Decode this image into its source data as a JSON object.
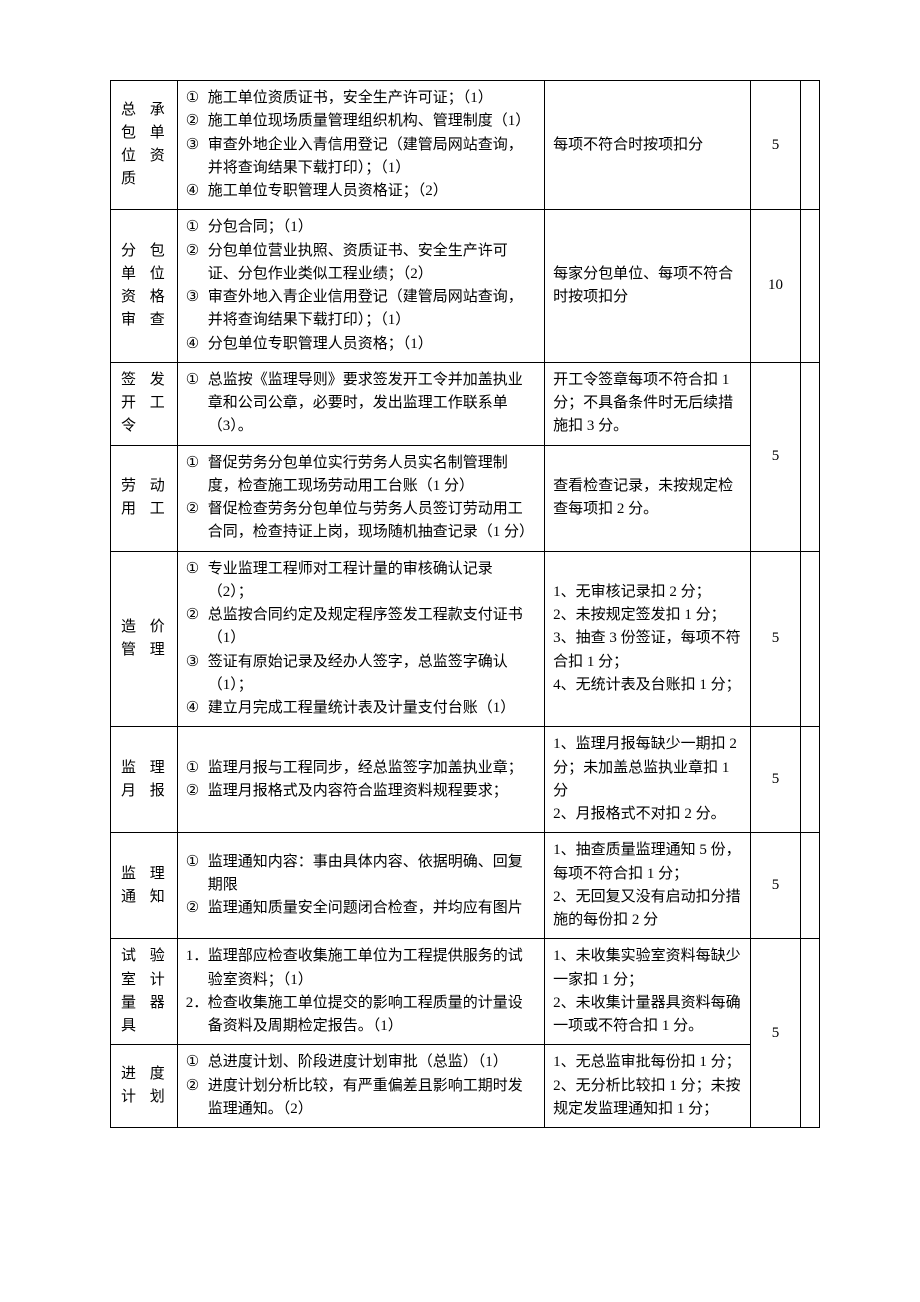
{
  "rows": [
    {
      "label": "总承包单位资质",
      "items": [
        {
          "marker": "①",
          "text": "施工单位资质证书，安全生产许可证；（1）"
        },
        {
          "marker": "②",
          "text": "施工单位现场质量管理组织机构、管理制度（1）"
        },
        {
          "marker": "③",
          "text": "审查外地企业入青信用登记（建管局网站查询，并将查询结果下载打印）；（1）"
        },
        {
          "marker": "④",
          "text": "施工单位专职管理人员资格证；（2）"
        }
      ],
      "criteria": "每项不符合时按项扣分",
      "score": "5"
    },
    {
      "label": "分包单位资格审查",
      "items": [
        {
          "marker": "①",
          "text": "分包合同；（1）"
        },
        {
          "marker": "②",
          "text": "分包单位营业执照、资质证书、安全生产许可证、分包作业类似工程业绩；（2）"
        },
        {
          "marker": "③",
          "text": "审查外地入青企业信用登记（建管局网站查询，并将查询结果下载打印）；（1）"
        },
        {
          "marker": "④",
          "text": "分包单位专职管理人员资格；（1）"
        }
      ],
      "criteria": "每家分包单位、每项不符合时按项扣分",
      "score": "10"
    },
    {
      "label": "签发开工令",
      "items": [
        {
          "marker": "①",
          "text": "总监按《监理导则》要求签发开工令并加盖执业章和公司公章，必要时，发出监理工作联系单（3）。"
        }
      ],
      "criteria": "开工令签章每项不符合扣 1 分；不具备条件时无后续措施扣 3 分。",
      "score": null
    },
    {
      "label": "劳动用工",
      "items": [
        {
          "marker": "①",
          "text": "督促劳务分包单位实行劳务人员实名制管理制度，检查施工现场劳动用工台账（1 分）"
        },
        {
          "marker": "②",
          "text": "督促检查劳务分包单位与劳务人员签订劳动用工合同，检查持证上岗，现场随机抽查记录（1 分）"
        }
      ],
      "criteria": "查看检查记录，未按规定检查每项扣 2 分。",
      "score": "5"
    },
    {
      "label": "造价管理",
      "items": [
        {
          "marker": "①",
          "text": "专业监理工程师对工程计量的审核确认记录（2）；"
        },
        {
          "marker": "②",
          "text": "总监按合同约定及规定程序签发工程款支付证书（1）"
        },
        {
          "marker": "③",
          "text": "签证有原始记录及经办人签字，总监签字确认（1）；"
        },
        {
          "marker": "④",
          "text": "建立月完成工程量统计表及计量支付台账（1）"
        }
      ],
      "criteria": "1、无审核记录扣 2 分；\n2、未按规定签发扣 1 分；\n3、抽查 3 份签证，每项不符合扣 1 分；\n4、无统计表及台账扣 1 分；",
      "score": "5"
    },
    {
      "label": "监理月报",
      "items": [
        {
          "marker": "①",
          "text": "监理月报与工程同步，经总监签字加盖执业章；"
        },
        {
          "marker": "②",
          "text": "监理月报格式及内容符合监理资料规程要求；"
        }
      ],
      "criteria": "1、监理月报每缺少一期扣 2 分；未加盖总监执业章扣 1 分\n2、月报格式不对扣 2 分。",
      "score": "5"
    },
    {
      "label": "监理通知",
      "items": [
        {
          "marker": "①",
          "text": "监理通知内容：事由具体内容、依据明确、回复期限"
        },
        {
          "marker": "②",
          "text": "监理通知质量安全问题闭合检查，并均应有图片"
        }
      ],
      "criteria": "1、抽查质量监理通知 5 份，每项不符合扣 1 分；\n2、无回复又没有启动扣分措施的每份扣 2 分",
      "score": "5"
    },
    {
      "label": "试验室计量器具",
      "items": [
        {
          "marker": "1．",
          "text": "监理部应检查收集施工单位为工程提供服务的试验室资料；（1）"
        },
        {
          "marker": "2．",
          "text": "检查收集施工单位提交的影响工程质量的计量设备资料及周期检定报告。（1）"
        }
      ],
      "criteria": "1、未收集实验室资料每缺少一家扣 1 分；\n2、未收集计量器具资料每确一项或不符合扣 1 分。",
      "score": null
    },
    {
      "label": "进度计划",
      "items": [
        {
          "marker": "①",
          "text": "总进度计划、阶段进度计划审批（总监）（1）"
        },
        {
          "marker": "②",
          "text": "进度计划分析比较，有严重偏差且影响工期时发监理通知。（2）"
        }
      ],
      "criteria": "1、无总监审批每份扣 1 分；\n2、无分析比较扣 1 分；未按规定发监理通知扣 1 分；",
      "score": "5"
    }
  ]
}
